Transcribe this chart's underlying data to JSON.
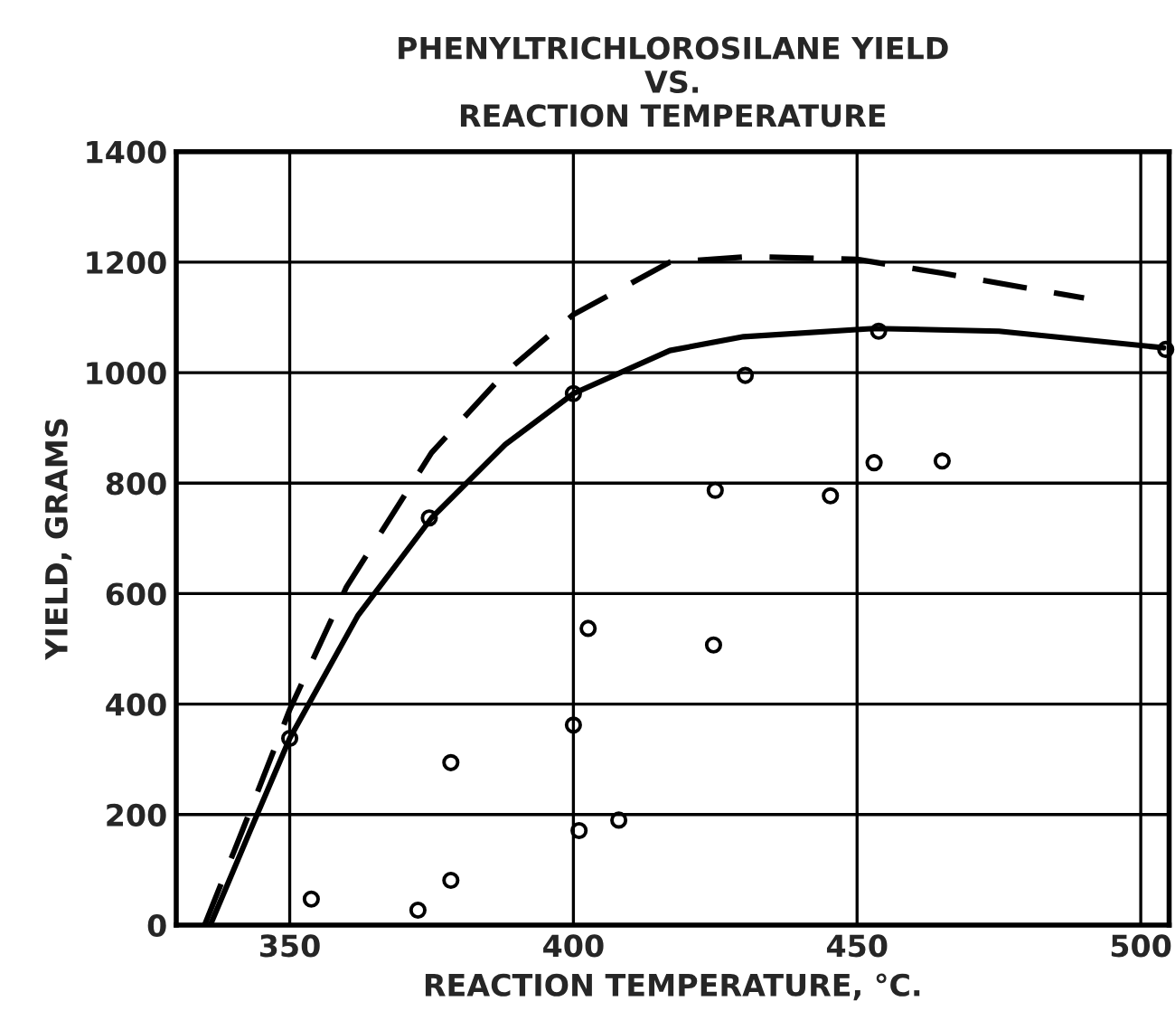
{
  "chart_data": {
    "type": "line",
    "title": "PHENYLTRICHLOROSILANE YIELD\nVS.\nREACTION TEMPERATURE",
    "xlabel": "REACTION TEMPERATURE, °C.",
    "ylabel": "YIELD, GRAMS",
    "xlim": [
      330,
      505
    ],
    "xticks": [
      350,
      400,
      450,
      500
    ],
    "ylim": [
      0,
      1400
    ],
    "yticks": [
      0,
      200,
      400,
      600,
      800,
      1000,
      1200,
      1400
    ],
    "grid": true,
    "series": [
      {
        "line_style": "dashed",
        "marker": "none",
        "color": "#000000",
        "x": [
          335,
          342,
          350,
          360,
          375,
          388,
          400,
          417,
          431,
          450,
          465,
          490
        ],
        "values": [
          0,
          180,
          390,
          612,
          855,
          1000,
          1105,
          1200,
          1210,
          1205,
          1180,
          1135
        ]
      },
      {
        "line_style": "solid",
        "marker": "none",
        "color": "#000000",
        "x": [
          336,
          343,
          350,
          362,
          375,
          388,
          400,
          417,
          430,
          453,
          475,
          504
        ],
        "values": [
          0,
          170,
          338,
          560,
          737,
          870,
          962,
          1040,
          1065,
          1080,
          1075,
          1045
        ]
      },
      {
        "type": "scatter",
        "marker": "circle",
        "color": "#000000",
        "x": [
          350,
          374.6,
          400,
          402.6,
          400,
          378.4,
          401,
          408,
          378.4,
          353.8,
          372.6,
          453.8,
          504.4,
          430.3,
          453,
          465,
          425,
          445.3,
          424.7
        ],
        "values": [
          338,
          737,
          962,
          537,
          362,
          294,
          171,
          190,
          81,
          47,
          27,
          1075,
          1042,
          995,
          837,
          840,
          787,
          777,
          507
        ]
      }
    ]
  }
}
